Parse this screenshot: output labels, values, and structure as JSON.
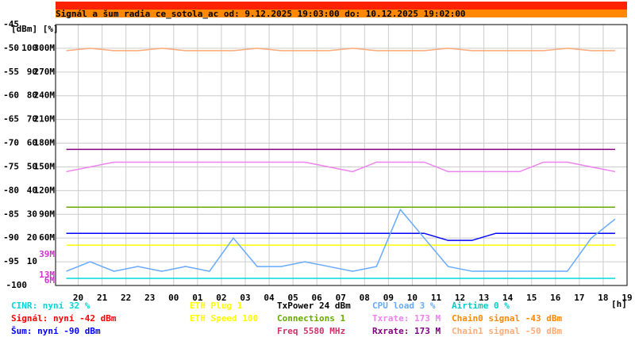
{
  "chart_data": {
    "type": "line",
    "title": "Signál a šum radia ce_sotola_ac od: 9.12.2025 19:03:00 do: 10.12.2025 19:02:00",
    "y_axis_label": "[dBm] [%]",
    "x_axis_label": "[h]",
    "xlim": [
      19.05,
      43.0
    ],
    "xticks": [
      20,
      21,
      22,
      23,
      {
        "value": 24,
        "label": "00"
      },
      {
        "value": 25,
        "label": "01"
      },
      {
        "value": 26,
        "label": "02"
      },
      {
        "value": 27,
        "label": "03"
      },
      {
        "value": 28,
        "label": "04"
      },
      {
        "value": 29,
        "label": "05"
      },
      {
        "value": 30,
        "label": "06"
      },
      {
        "value": 31,
        "label": "07"
      },
      {
        "value": 32,
        "label": "08"
      },
      {
        "value": 33,
        "label": "09"
      },
      {
        "value": 34,
        "label": "10"
      },
      {
        "value": 35,
        "label": "11"
      },
      {
        "value": 36,
        "label": "12"
      },
      {
        "value": 37,
        "label": "13"
      },
      {
        "value": 38,
        "label": "14"
      },
      {
        "value": 39,
        "label": "15"
      },
      {
        "value": 40,
        "label": "16"
      },
      {
        "value": 41,
        "label": "17"
      },
      {
        "value": 42,
        "label": "18"
      },
      {
        "value": 43,
        "label": "19"
      }
    ],
    "ylim": [
      -100,
      -45
    ],
    "yticks": [
      -45,
      -50,
      -55,
      -60,
      -65,
      -70,
      -75,
      -80,
      -85,
      -90,
      -95,
      -100
    ],
    "y2lim": [
      0,
      110
    ],
    "y2ticks": [
      100,
      90,
      80,
      70,
      60,
      50,
      40,
      30,
      20,
      10
    ],
    "y3lim": [
      0,
      330
    ],
    "y3ticks": [
      {
        "value": 300,
        "label": "300M"
      },
      {
        "value": 270,
        "label": "270M"
      },
      {
        "value": 240,
        "label": "240M"
      },
      {
        "value": 210,
        "label": "210M"
      },
      {
        "value": 180,
        "label": "180M"
      },
      {
        "value": 150,
        "label": "150M"
      },
      {
        "value": 120,
        "label": "120M"
      },
      {
        "value": 90,
        "label": "90M"
      },
      {
        "value": 60,
        "label": "60M"
      }
    ],
    "y3_markers": {
      "color": "#cc33cc",
      "values": [
        39,
        13,
        6
      ],
      "value_labels": [
        "39M",
        "13M",
        "6M"
      ]
    },
    "grid": true,
    "x": [
      19.5,
      20.5,
      21.5,
      22.5,
      23.5,
      24.5,
      25.5,
      26.5,
      27.5,
      28.5,
      29.5,
      30.5,
      31.5,
      32.5,
      33.5,
      34.5,
      35.5,
      36.5,
      37.5,
      38.5,
      39.5,
      40.5,
      41.5,
      42.5
    ],
    "series": [
      {
        "name": "CINR: nyní 32 %",
        "color": "#00d8d8",
        "values": [
          -98.5,
          -98.5,
          -98.5,
          -98.5,
          -98.5,
          -98.5,
          -98.5,
          -98.5,
          -98.5,
          -98.5,
          -98.5,
          -98.5,
          -98.5,
          -98.5,
          -98.5,
          -98.5,
          -98.5,
          -98.5,
          -98.5,
          -98.5,
          -98.5,
          -98.5,
          -98.5,
          -98.5
        ]
      },
      {
        "name": "Signál: nyní -42 dBm",
        "color": "#ff0000"
      },
      {
        "name": "Šum: nyní -90 dBm",
        "color": "#0000ff",
        "values": [
          -89,
          -89,
          -89,
          -89,
          -89,
          -89,
          -89,
          -89,
          -89,
          -89,
          -89,
          -89,
          -89,
          -89,
          -89,
          -89,
          -90.5,
          -90.5,
          -89,
          -89,
          -89,
          -89,
          -89,
          -89
        ]
      },
      {
        "name": "ETH Plug 1",
        "color": "#ffff00"
      },
      {
        "name": "ETH Speed 100",
        "color": "#ffff00",
        "values": [
          -91.5,
          -91.5,
          -91.5,
          -91.5,
          -91.5,
          -91.5,
          -91.5,
          -91.5,
          -91.5,
          -91.5,
          -91.5,
          -91.5,
          -91.5,
          -91.5,
          -91.5,
          -91.5,
          -91.5,
          -91.5,
          -91.5,
          -91.5,
          -91.5,
          -91.5,
          -91.5,
          -91.5
        ]
      },
      {
        "name": "TxPower 24 dBm",
        "color": "#000000"
      },
      {
        "name": "Connections 1",
        "color": "#66aa00",
        "values": [
          -83.5,
          -83.5,
          -83.5,
          -83.5,
          -83.5,
          -83.5,
          -83.5,
          -83.5,
          -83.5,
          -83.5,
          -83.5,
          -83.5,
          -83.5,
          -83.5,
          -83.5,
          -83.5,
          -83.5,
          -83.5,
          -83.5,
          -83.5,
          -83.5,
          -83.5,
          -83.5,
          -83.5
        ]
      },
      {
        "name": "Freq 5580 MHz",
        "color": "#cc3366"
      },
      {
        "name": "CPU load 3 %",
        "color": "#66aaff",
        "values": [
          -97,
          -95,
          -97,
          -96,
          -97,
          -96,
          -97,
          -90,
          -96,
          -96,
          -95,
          -96,
          -97,
          -96,
          -84,
          -90,
          -96,
          -97,
          -97,
          -97,
          -97,
          -97,
          -90,
          -86
        ]
      },
      {
        "name": "Txrate: 173 M",
        "color": "#ee82ee",
        "values": [
          -76,
          -75,
          -74,
          -74,
          -74,
          -74,
          -74,
          -74,
          -74,
          -74,
          -74,
          -75,
          -76,
          -74,
          -74,
          -74,
          -76,
          -76,
          -76,
          -76,
          -74,
          -74,
          -75,
          -76
        ]
      },
      {
        "name": "Rxrate: 173 M",
        "color": "#800080",
        "values": [
          -71.3,
          -71.3,
          -71.3,
          -71.3,
          -71.3,
          -71.3,
          -71.3,
          -71.3,
          -71.3,
          -71.3,
          -71.3,
          -71.3,
          -71.3,
          -71.3,
          -71.3,
          -71.3,
          -71.3,
          -71.3,
          -71.3,
          -71.3,
          -71.3,
          -71.3,
          -71.3,
          -71.3
        ]
      },
      {
        "name": "Airtime 0 %",
        "color": "#00cccc"
      },
      {
        "name": "Chain0 signal -43 dBm",
        "color": "#ff8800"
      },
      {
        "name": "Chain1 signal -50 dBm",
        "color": "#ffaa77",
        "values": [
          -50.5,
          -50,
          -50.5,
          -50.5,
          -50,
          -50.5,
          -50.5,
          -50.5,
          -50,
          -50.5,
          -50.5,
          -50.5,
          -50,
          -50.5,
          -50.5,
          -50.5,
          -50,
          -50.5,
          -50.5,
          -50.5,
          -50.5,
          -50,
          -50.5,
          -50.5
        ]
      }
    ]
  }
}
